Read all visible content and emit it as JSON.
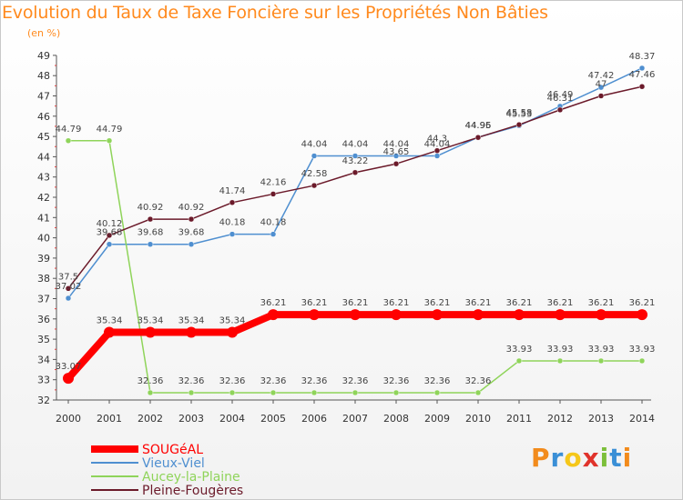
{
  "header": {
    "title": "Evolution du Taux de Taxe Foncière sur les Propriétés Non Bâties",
    "subtitle": "(en %)"
  },
  "logo": {
    "letters": [
      "P",
      "r",
      "o",
      "x",
      "i",
      "t",
      "i"
    ],
    "colors": [
      "#f28b1c",
      "#3a8fd6",
      "#f5c71a",
      "#e0332b",
      "#7cbf3a",
      "#3a8fd6",
      "#f28b1c"
    ]
  },
  "chart_data": {
    "type": "line",
    "x": [
      "2000",
      "2001",
      "2002",
      "2003",
      "2004",
      "2005",
      "2006",
      "2007",
      "2008",
      "2009",
      "2010",
      "2011",
      "2012",
      "2013",
      "2014"
    ],
    "ylim": [
      32,
      49
    ],
    "yticks": [
      "32",
      "33",
      "34",
      "35",
      "36",
      "37",
      "38",
      "39",
      "40",
      "41",
      "42",
      "43",
      "44",
      "45",
      "46",
      "47",
      "48",
      "49"
    ],
    "grid": false,
    "legend": "bottom-left",
    "series": [
      {
        "name": "SOUGéAL",
        "color": "#ff0000",
        "values": [
          33.07,
          35.34,
          35.34,
          35.34,
          35.34,
          36.21,
          36.21,
          36.21,
          36.21,
          36.21,
          36.21,
          36.21,
          36.21,
          36.21,
          36.21
        ],
        "labels": [
          "33.07",
          "35.34",
          "35.34",
          "35.34",
          "35.34",
          "36.21",
          "36.21",
          "36.21",
          "36.21",
          "36.21",
          "36.21",
          "36.21",
          "36.21",
          "36.21",
          "36.21"
        ]
      },
      {
        "name": "Vieux-Viel",
        "color": "#4f8fd0",
        "values": [
          37.02,
          39.68,
          39.68,
          39.68,
          40.18,
          40.18,
          44.04,
          44.04,
          44.04,
          44.04,
          44.96,
          45.53,
          46.49,
          47.42,
          48.37
        ],
        "labels": [
          "37.02",
          "39.68",
          "39.68",
          "39.68",
          "40.18",
          "40.18",
          "44.04",
          "44.04",
          "44.04",
          "44.04",
          "44.96",
          "45.53",
          "46.49",
          "47.42",
          "48.37"
        ]
      },
      {
        "name": "Aucey-la-Plaine",
        "color": "#8fd45a",
        "values": [
          44.79,
          44.79,
          32.36,
          32.36,
          32.36,
          32.36,
          32.36,
          32.36,
          32.36,
          32.36,
          32.36,
          33.93,
          33.93,
          33.93,
          33.93
        ],
        "labels": [
          "44.79",
          "44.79",
          "32.36",
          "32.36",
          "32.36",
          "32.36",
          "32.36",
          "32.36",
          "32.36",
          "32.36",
          "32.36",
          "33.93",
          "33.93",
          "33.93",
          "33.93"
        ]
      },
      {
        "name": "Pleine-Fougères",
        "color": "#6b1a2a",
        "values": [
          37.5,
          40.12,
          40.92,
          40.92,
          41.74,
          42.16,
          42.58,
          43.22,
          43.65,
          44.3,
          44.95,
          45.58,
          46.31,
          47.0,
          47.46
        ],
        "labels": [
          "37.5",
          "40.12",
          "40.92",
          "40.92",
          "41.74",
          "42.16",
          "42.58",
          "43.22",
          "43.65",
          "44.3",
          "44.95",
          "45.58",
          "46.31",
          "47",
          "47.46"
        ]
      }
    ]
  }
}
